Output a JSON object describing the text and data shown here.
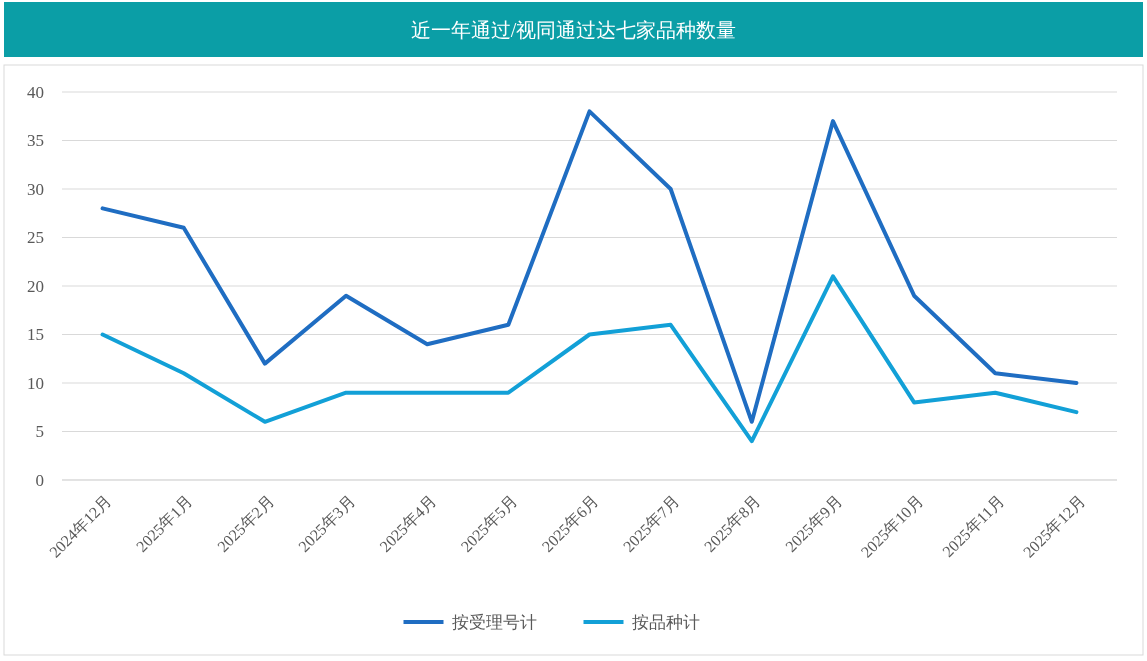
{
  "chart_data": {
    "type": "line",
    "title": "近一年通过/视同通过达七家品种数量",
    "categories": [
      "2024年12月",
      "2025年1月",
      "2025年2月",
      "2025年3月",
      "2025年4月",
      "2025年5月",
      "2025年6月",
      "2025年7月",
      "2025年8月",
      "2025年9月",
      "2025年10月",
      "2025年11月",
      "2025年12月"
    ],
    "series": [
      {
        "name": "按受理号计",
        "color": "#1f6dc2",
        "values": [
          28,
          26,
          12,
          19,
          14,
          16,
          38,
          30,
          6,
          37,
          19,
          11,
          10
        ]
      },
      {
        "name": "按品种计",
        "color": "#12a0d7",
        "values": [
          15,
          11,
          6,
          9,
          9,
          9,
          15,
          16,
          4,
          21,
          8,
          9,
          7
        ]
      }
    ],
    "ylim": [
      0,
      40
    ],
    "yticks": [
      0,
      5,
      10,
      15,
      20,
      25,
      30,
      35,
      40
    ],
    "grid": "y",
    "legend": "bottom",
    "marker": "none",
    "line_style": "solid"
  }
}
